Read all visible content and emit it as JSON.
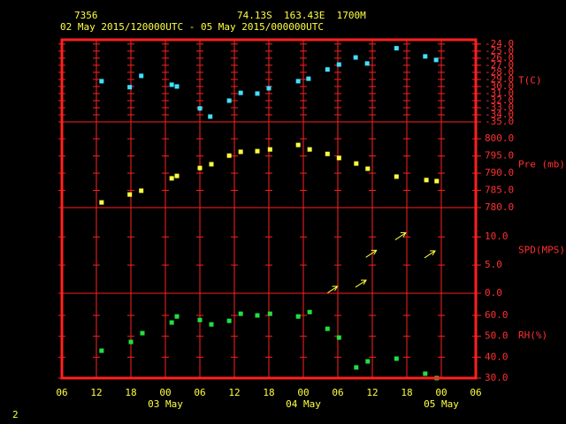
{
  "header": {
    "station": "7356",
    "location": "74.13S  163.43E  1700M",
    "period": "02 May 2015/120000UTC - 05 May 2015/000000UTC",
    "page_number": "2"
  },
  "x_axis": {
    "xlim": [
      0,
      72
    ],
    "xticks": [
      {
        "value": 0,
        "label": "06"
      },
      {
        "value": 6,
        "label": "12"
      },
      {
        "value": 12,
        "label": "18"
      },
      {
        "value": 18,
        "label": "00"
      },
      {
        "value": 24,
        "label": "06"
      },
      {
        "value": 30,
        "label": "12"
      },
      {
        "value": 36,
        "label": "18"
      },
      {
        "value": 42,
        "label": "00"
      },
      {
        "value": 48,
        "label": "06"
      },
      {
        "value": 54,
        "label": "12"
      },
      {
        "value": 60,
        "label": "18"
      },
      {
        "value": 66,
        "label": "00"
      },
      {
        "value": 72,
        "label": "06"
      }
    ],
    "day_labels": [
      "03 May",
      "04 May",
      "05 May"
    ]
  },
  "chart_data": [
    {
      "type": "scatter",
      "ylabel": "T(C)",
      "color": "#40e0ff",
      "ylim": [
        -35,
        -23.4
      ],
      "yticks": [
        {
          "value": -24,
          "label": "-24.0"
        },
        {
          "value": -25,
          "label": "-25.0"
        },
        {
          "value": -26,
          "label": "-26.0"
        },
        {
          "value": -27,
          "label": "-27.0"
        },
        {
          "value": -28,
          "label": "-28.0"
        },
        {
          "value": -29,
          "label": "-29.0"
        },
        {
          "value": -30,
          "label": "-30.0"
        },
        {
          "value": -31,
          "label": "-31.0"
        },
        {
          "value": -32,
          "label": "-32.0"
        },
        {
          "value": -33,
          "label": "-33.0"
        },
        {
          "value": -34,
          "label": "-34.0"
        },
        {
          "value": -35,
          "label": "-35.0"
        }
      ],
      "x": [
        6.9,
        11.8,
        13.8,
        19.1,
        20,
        24,
        25.8,
        29.1,
        31.1,
        34,
        36,
        41.1,
        42.9,
        46.2,
        48.2,
        51.1,
        53.1,
        58.2,
        63.2,
        65.1
      ],
      "values": [
        -29.25,
        -30.1,
        -28.5,
        -29.75,
        -30,
        -33.1,
        -34.25,
        -32,
        -30.9,
        -31,
        -30.25,
        -29.25,
        -28.9,
        -27.6,
        -26.9,
        -25.9,
        -26.75,
        -24.6,
        -25.75,
        -26.25
      ]
    },
    {
      "type": "scatter",
      "ylabel": "Pre (mb)",
      "color": "#ffff40",
      "ylim": [
        780,
        804.9
      ],
      "yticks": [
        {
          "value": 780,
          "label": "780.0"
        },
        {
          "value": 785,
          "label": "785.0"
        },
        {
          "value": 790,
          "label": "790.0"
        },
        {
          "value": 795,
          "label": "795.0"
        },
        {
          "value": 800,
          "label": "800.0"
        }
      ],
      "x": [
        6.9,
        11.8,
        13.8,
        19.1,
        20,
        24,
        26,
        29.1,
        31.1,
        34,
        36.2,
        41.1,
        43.1,
        46.2,
        48.2,
        51.2,
        53.2,
        58.2,
        63.4,
        65.2
      ],
      "values": [
        781.5,
        783.8,
        784.9,
        788.5,
        789.2,
        791.5,
        792.6,
        795.1,
        796.2,
        796.4,
        796.9,
        798.2,
        796.9,
        795.6,
        794.4,
        792.8,
        791.3,
        789,
        788,
        787.7
      ]
    },
    {
      "type": "vector",
      "ylabel": "SPD(MPS)",
      "color": "#ffff40",
      "ylim": [
        0,
        15.2
      ],
      "yticks": [
        {
          "value": 0,
          "label": "0.0"
        },
        {
          "value": 5,
          "label": "5.0"
        },
        {
          "value": 10,
          "label": "10.0"
        }
      ],
      "x": [
        47,
        52,
        53.8,
        58.9,
        64
      ],
      "values": [
        0.6,
        1.7,
        7,
        10.1,
        6.9
      ]
    },
    {
      "type": "scatter",
      "ylabel": "RH(%)",
      "color": "#20e040",
      "ylim": [
        30,
        70.6
      ],
      "yticks": [
        {
          "value": 30,
          "label": "30.0"
        },
        {
          "value": 40,
          "label": "40.0"
        },
        {
          "value": 50,
          "label": "50.0"
        },
        {
          "value": 60,
          "label": "60.0"
        }
      ],
      "x": [
        6.9,
        12,
        14,
        19.1,
        20,
        24,
        26,
        29.1,
        31.1,
        34,
        36.2,
        41.1,
        43.1,
        46.2,
        48.2,
        51.2,
        53.2,
        58.2,
        63.2,
        65.2
      ],
      "values": [
        43.1,
        47.3,
        51.5,
        56.6,
        59.5,
        57.8,
        55.7,
        57.4,
        60.8,
        60,
        60.8,
        59.5,
        61.6,
        53.6,
        49.4,
        35.1,
        38,
        39.3,
        32.1,
        30
      ]
    }
  ]
}
